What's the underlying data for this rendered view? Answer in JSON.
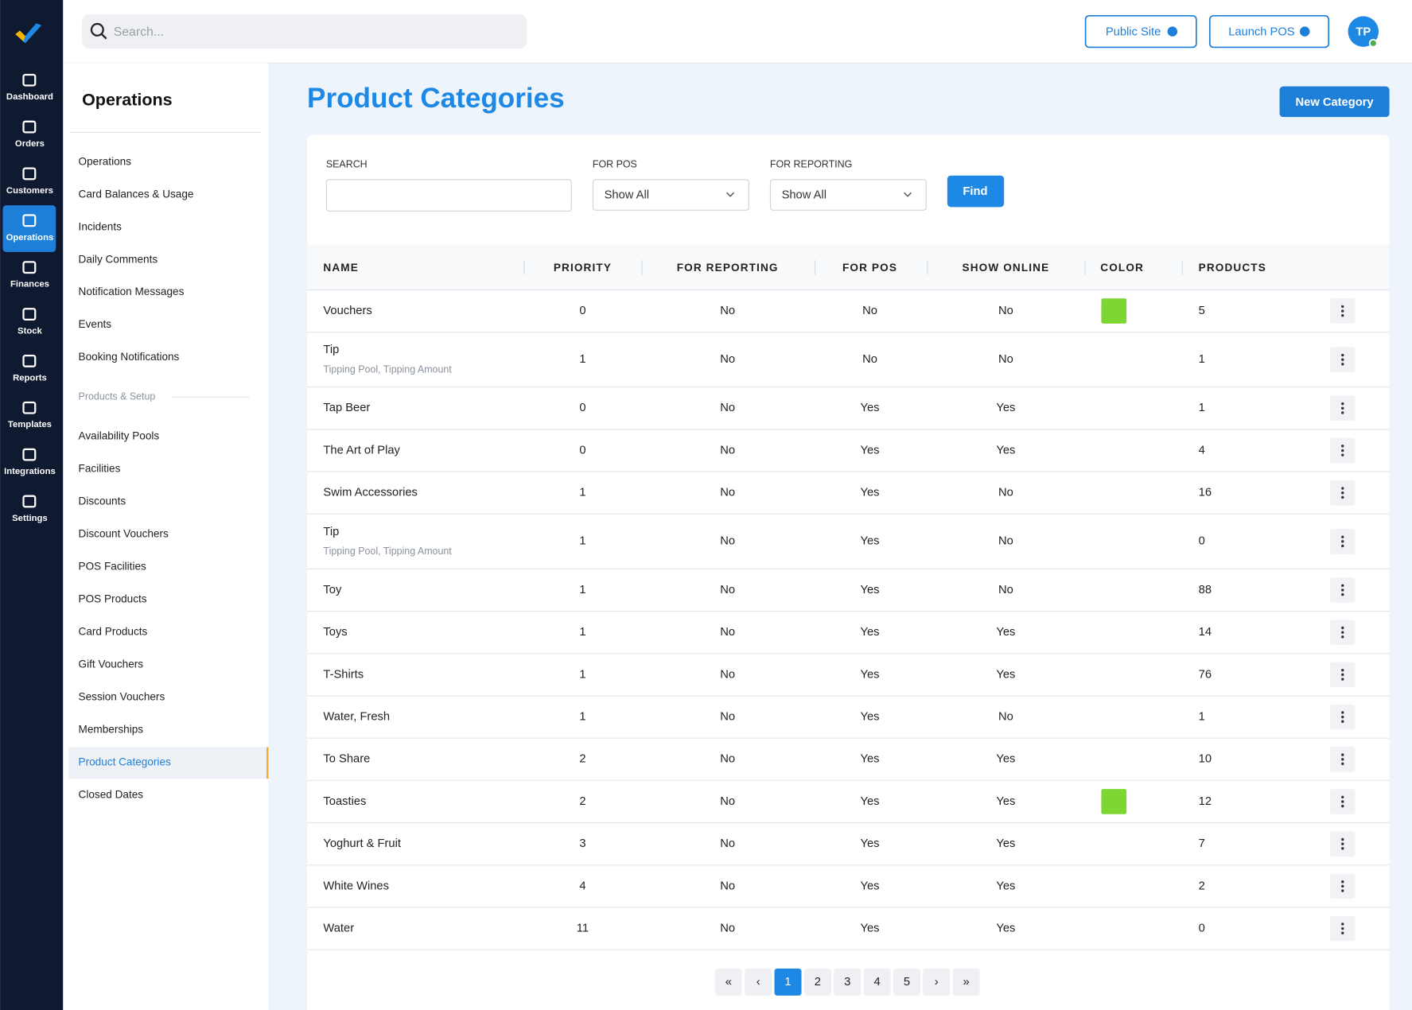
{
  "app_nav": [
    "Dashboard",
    "Orders",
    "Customers",
    "Operations",
    "Finances",
    "Stock",
    "Reports",
    "Templates",
    "Integrations",
    "Settings"
  ],
  "app_nav_active": 3,
  "header": {
    "search_placeholder": "Search...",
    "buttons": [
      "Public Site",
      "Launch POS"
    ],
    "avatar": "TP"
  },
  "side_menu": {
    "title": "Operations",
    "items": [
      "Operations",
      "Card Balances & Usage",
      "Incidents",
      "Daily Comments",
      "Notification Messages",
      "Events",
      "Booking Notifications"
    ],
    "section": "Products & Setup",
    "section_items": [
      "Availability Pools",
      "Facilities",
      "Discounts",
      "Discount Vouchers",
      "POS Facilities",
      "POS Products",
      "Card Products",
      "Gift Vouchers",
      "Session Vouchers",
      "Memberships",
      "Product Categories",
      "Closed Dates"
    ],
    "active_section_item": 10
  },
  "page": {
    "title": "Product Categories",
    "new_button": "New Category"
  },
  "filters": {
    "search_label": "SEARCH",
    "pos_label": "FOR POS",
    "pos_value": "Show All",
    "reporting_label": "FOR REPORTING",
    "reporting_value": "Show All",
    "find": "Find"
  },
  "table": {
    "headers": [
      "NAME",
      "PRIORITY",
      "FOR REPORTING",
      "FOR POS",
      "SHOW ONLINE",
      "COLOR",
      "PRODUCTS"
    ],
    "rows": [
      {
        "name": "Vouchers",
        "priority": 0,
        "reporting": "No",
        "pos": "No",
        "online": "No",
        "color": "#7ed633",
        "products": 5
      },
      {
        "name": "Tip",
        "subtitle": "Tipping Pool, Tipping Amount",
        "priority": 1,
        "reporting": "No",
        "pos": "No",
        "online": "No",
        "products": 1
      },
      {
        "name": "Tap Beer",
        "priority": 0,
        "reporting": "No",
        "pos": "Yes",
        "online": "Yes",
        "products": 1
      },
      {
        "name": "The Art of Play",
        "priority": 0,
        "reporting": "No",
        "pos": "Yes",
        "online": "Yes",
        "products": 4
      },
      {
        "name": "Swim Accessories",
        "priority": 1,
        "reporting": "No",
        "pos": "Yes",
        "online": "No",
        "products": 16
      },
      {
        "name": "Tip",
        "subtitle": "Tipping Pool, Tipping Amount",
        "priority": 1,
        "reporting": "No",
        "pos": "Yes",
        "online": "No",
        "products": 0
      },
      {
        "name": "Toy",
        "priority": 1,
        "reporting": "No",
        "pos": "Yes",
        "online": "No",
        "products": 88
      },
      {
        "name": "Toys",
        "priority": 1,
        "reporting": "No",
        "pos": "Yes",
        "online": "Yes",
        "products": 14
      },
      {
        "name": "T-Shirts",
        "priority": 1,
        "reporting": "No",
        "pos": "Yes",
        "online": "Yes",
        "products": 76
      },
      {
        "name": "Water, Fresh",
        "priority": 1,
        "reporting": "No",
        "pos": "Yes",
        "online": "No",
        "products": 1
      },
      {
        "name": "To Share",
        "priority": 2,
        "reporting": "No",
        "pos": "Yes",
        "online": "Yes",
        "products": 10
      },
      {
        "name": "Toasties",
        "priority": 2,
        "reporting": "No",
        "pos": "Yes",
        "online": "Yes",
        "color": "#7ed633",
        "products": 12
      },
      {
        "name": "Yoghurt & Fruit",
        "priority": 3,
        "reporting": "No",
        "pos": "Yes",
        "online": "Yes",
        "products": 7
      },
      {
        "name": "White Wines",
        "priority": 4,
        "reporting": "No",
        "pos": "Yes",
        "online": "Yes",
        "products": 2
      },
      {
        "name": "Water",
        "priority": 11,
        "reporting": "No",
        "pos": "Yes",
        "online": "Yes",
        "products": 0
      }
    ]
  },
  "pagination": {
    "first": "«",
    "prev": "‹",
    "pages": [
      1,
      2,
      3,
      4,
      5
    ],
    "current": 0,
    "next": "›",
    "last": "»"
  }
}
